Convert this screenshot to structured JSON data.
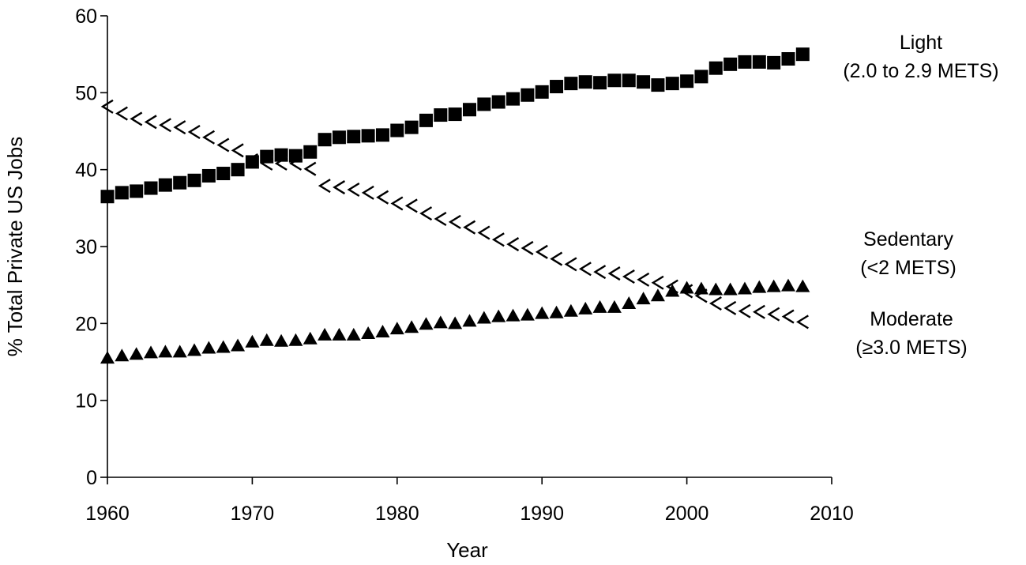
{
  "chart_data": {
    "type": "scatter",
    "title": "",
    "xlabel": "Year",
    "ylabel": "% Total Private US Jobs",
    "xlim": [
      1960,
      2010
    ],
    "ylim": [
      0,
      60
    ],
    "x_ticks": [
      "1960",
      "1970",
      "1980",
      "1990",
      "2000",
      "2010"
    ],
    "y_ticks": [
      "0",
      "10",
      "20",
      "30",
      "40",
      "50",
      "60"
    ],
    "grid": false,
    "legend": "direct labels at right of series",
    "x": [
      1960,
      1961,
      1962,
      1963,
      1964,
      1965,
      1966,
      1967,
      1968,
      1969,
      1970,
      1971,
      1972,
      1973,
      1974,
      1975,
      1976,
      1977,
      1978,
      1979,
      1980,
      1981,
      1982,
      1983,
      1984,
      1985,
      1986,
      1987,
      1988,
      1989,
      1990,
      1991,
      1992,
      1993,
      1994,
      1995,
      1996,
      1997,
      1998,
      1999,
      2000,
      2001,
      2002,
      2003,
      2004,
      2005,
      2006,
      2007,
      2008
    ],
    "series": [
      {
        "label_lines": [
          "Light",
          "(2.0 to 2.9 METS)"
        ],
        "marker": "square",
        "color": "#000000",
        "values": [
          36.5,
          37.0,
          37.2,
          37.6,
          38.0,
          38.3,
          38.6,
          39.2,
          39.5,
          40.0,
          41.0,
          41.7,
          41.9,
          41.8,
          42.3,
          43.9,
          44.2,
          44.3,
          44.4,
          44.5,
          45.1,
          45.5,
          46.4,
          47.1,
          47.2,
          47.8,
          48.5,
          48.8,
          49.2,
          49.7,
          50.1,
          50.8,
          51.2,
          51.4,
          51.3,
          51.6,
          51.6,
          51.4,
          51.0,
          51.2,
          51.5,
          52.1,
          53.2,
          53.7,
          54.0,
          54.0,
          53.9,
          54.4,
          55.0
        ]
      },
      {
        "label_lines": [
          "Sedentary",
          "(<2 METS)"
        ],
        "marker": "hollow-chevron",
        "color": "#000000",
        "values": [
          48.2,
          47.3,
          46.6,
          46.2,
          45.8,
          45.5,
          44.9,
          44.2,
          43.2,
          42.5,
          41.2,
          40.8,
          40.8,
          40.8,
          40.1,
          37.9,
          37.7,
          37.4,
          37.0,
          36.4,
          35.6,
          35.3,
          34.3,
          33.6,
          33.2,
          32.5,
          31.8,
          30.9,
          30.3,
          29.8,
          29.3,
          28.4,
          27.7,
          27.1,
          26.7,
          26.5,
          26.1,
          25.7,
          25.3,
          24.8,
          24.2,
          23.6,
          22.6,
          22.0,
          21.6,
          21.5,
          21.2,
          20.9,
          20.2
        ]
      },
      {
        "label_lines": [
          "Moderate",
          "(≥3.0 METS)"
        ],
        "marker": "triangle",
        "color": "#000000",
        "values": [
          15.5,
          15.8,
          16.0,
          16.2,
          16.3,
          16.3,
          16.5,
          16.8,
          16.9,
          17.1,
          17.6,
          17.8,
          17.7,
          17.8,
          18.0,
          18.5,
          18.5,
          18.5,
          18.7,
          18.9,
          19.3,
          19.5,
          19.9,
          20.1,
          20.0,
          20.3,
          20.7,
          20.9,
          21.0,
          21.1,
          21.3,
          21.4,
          21.6,
          21.9,
          22.1,
          22.1,
          22.6,
          23.2,
          23.6,
          24.2,
          24.6,
          24.5,
          24.4,
          24.4,
          24.5,
          24.7,
          24.8,
          24.9,
          24.8
        ]
      }
    ]
  }
}
